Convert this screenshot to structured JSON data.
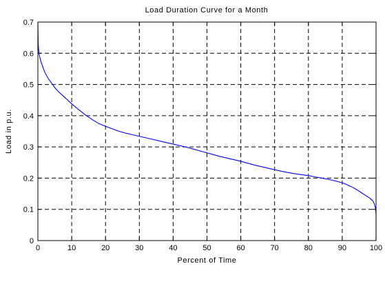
{
  "chart_data": {
    "type": "line",
    "title": "Load Duration Curve for a Month",
    "xlabel": "Percent of Time",
    "ylabel": "Load in p.u.",
    "xlim": [
      0,
      100
    ],
    "ylim": [
      0,
      0.7
    ],
    "grid": true,
    "x_ticks": [
      0,
      10,
      20,
      30,
      40,
      50,
      60,
      70,
      80,
      90,
      100
    ],
    "x_tick_labels": [
      "0",
      "10",
      "20",
      "30",
      "40",
      "50",
      "60",
      "70",
      "80",
      "90",
      "100"
    ],
    "y_ticks": [
      0,
      0.1,
      0.2,
      0.3,
      0.4,
      0.5,
      0.6,
      0.7
    ],
    "y_tick_labels": [
      "0",
      "0.1",
      "0.2",
      "0.3",
      "0.4",
      "0.5",
      "0.6",
      "0.7"
    ],
    "colors": {
      "series": "#0000ff",
      "grid": "#000000"
    },
    "series": [
      {
        "x": [
          0,
          0.1,
          0.3,
          0.6,
          1,
          1.5,
          2,
          3,
          4,
          5,
          6,
          7,
          8,
          9,
          10,
          12,
          14,
          16,
          18,
          20,
          22,
          24,
          26,
          28,
          30,
          32,
          34,
          36,
          38,
          40,
          42,
          44,
          46,
          48,
          50,
          52,
          54,
          56,
          58,
          60,
          62,
          64,
          66,
          68,
          70,
          72,
          74,
          76,
          78,
          80,
          82,
          84,
          86,
          88,
          90,
          91,
          92,
          93,
          94,
          95,
          96,
          97,
          98,
          99,
          99.5,
          99.8,
          100,
          100
        ],
        "y": [
          0.7,
          0.63,
          0.6,
          0.585,
          0.57,
          0.555,
          0.54,
          0.52,
          0.505,
          0.49,
          0.478,
          0.468,
          0.458,
          0.448,
          0.438,
          0.42,
          0.403,
          0.388,
          0.375,
          0.366,
          0.358,
          0.35,
          0.344,
          0.339,
          0.334,
          0.329,
          0.324,
          0.319,
          0.314,
          0.309,
          0.304,
          0.299,
          0.293,
          0.287,
          0.281,
          0.275,
          0.269,
          0.264,
          0.259,
          0.254,
          0.248,
          0.242,
          0.237,
          0.232,
          0.227,
          0.222,
          0.218,
          0.214,
          0.211,
          0.208,
          0.204,
          0.2,
          0.196,
          0.191,
          0.185,
          0.181,
          0.176,
          0.171,
          0.165,
          0.158,
          0.151,
          0.144,
          0.137,
          0.128,
          0.118,
          0.105,
          0.085,
          0
        ]
      }
    ]
  }
}
